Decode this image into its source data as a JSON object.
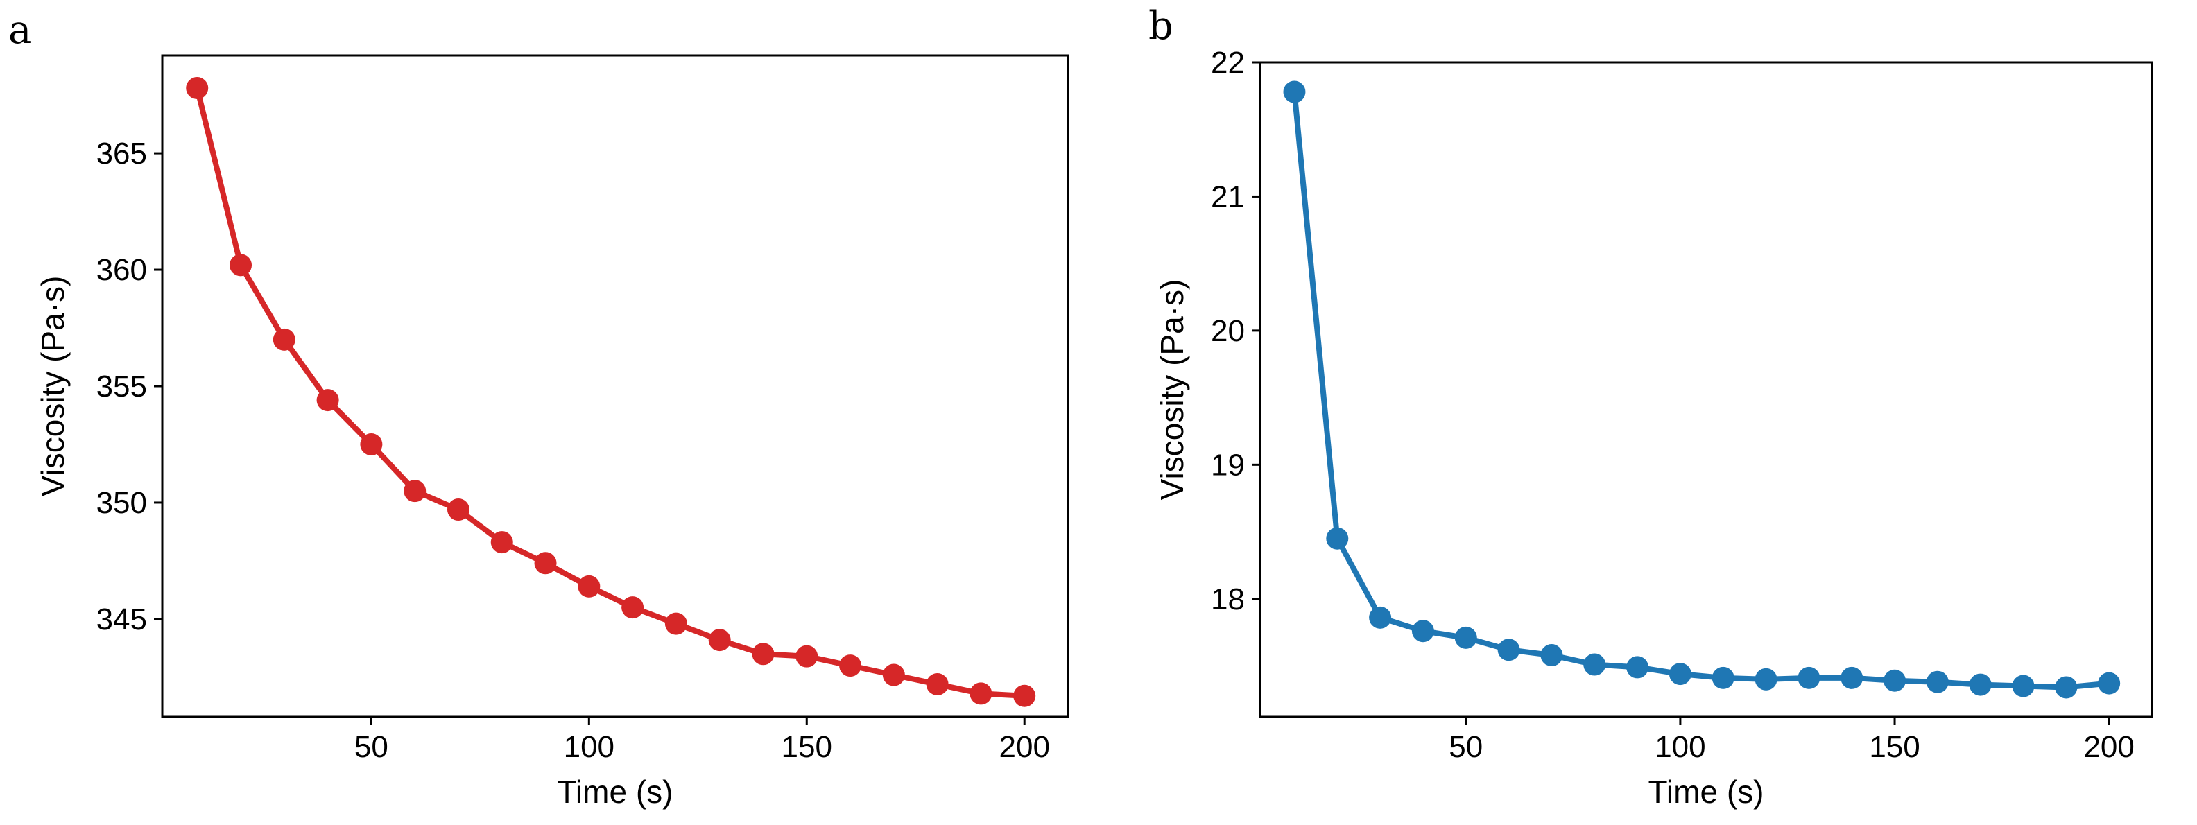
{
  "chart_data": [
    {
      "panel": "a",
      "type": "line",
      "color": "#d62728",
      "xlabel": "Time (s)",
      "ylabel": "Viscosity (Pa·s)",
      "xlim": [
        2,
        210
      ],
      "ylim": [
        340.8,
        369.2
      ],
      "xticks": [
        50,
        100,
        150,
        200
      ],
      "yticks": [
        345,
        350,
        355,
        360,
        365
      ],
      "grid": false,
      "series": [
        {
          "x": [
            10,
            20,
            30,
            40,
            50,
            60,
            70,
            80,
            90,
            100,
            110,
            120,
            130,
            140,
            150,
            160,
            170,
            180,
            190,
            200
          ],
          "y": [
            367.8,
            360.2,
            357.0,
            354.4,
            352.5,
            350.5,
            349.7,
            348.3,
            347.4,
            346.4,
            345.5,
            344.8,
            344.1,
            343.5,
            343.4,
            343.0,
            342.6,
            342.2,
            341.8,
            341.7
          ]
        }
      ]
    },
    {
      "panel": "b",
      "type": "line",
      "color": "#1f77b4",
      "xlabel": "Time (s)",
      "ylabel": "Viscosity (Pa·s)",
      "xlim": [
        2,
        210
      ],
      "ylim": [
        17.12,
        22.0
      ],
      "xticks": [
        50,
        100,
        150,
        200
      ],
      "yticks": [
        18,
        19,
        20,
        21,
        22
      ],
      "grid": false,
      "series": [
        {
          "x": [
            10,
            20,
            30,
            40,
            50,
            60,
            70,
            80,
            90,
            100,
            110,
            120,
            130,
            140,
            150,
            160,
            170,
            180,
            190,
            200
          ],
          "y": [
            21.78,
            18.45,
            17.86,
            17.76,
            17.71,
            17.62,
            17.58,
            17.51,
            17.49,
            17.44,
            17.41,
            17.4,
            17.41,
            17.41,
            17.39,
            17.38,
            17.36,
            17.35,
            17.34,
            17.37
          ]
        }
      ]
    }
  ]
}
